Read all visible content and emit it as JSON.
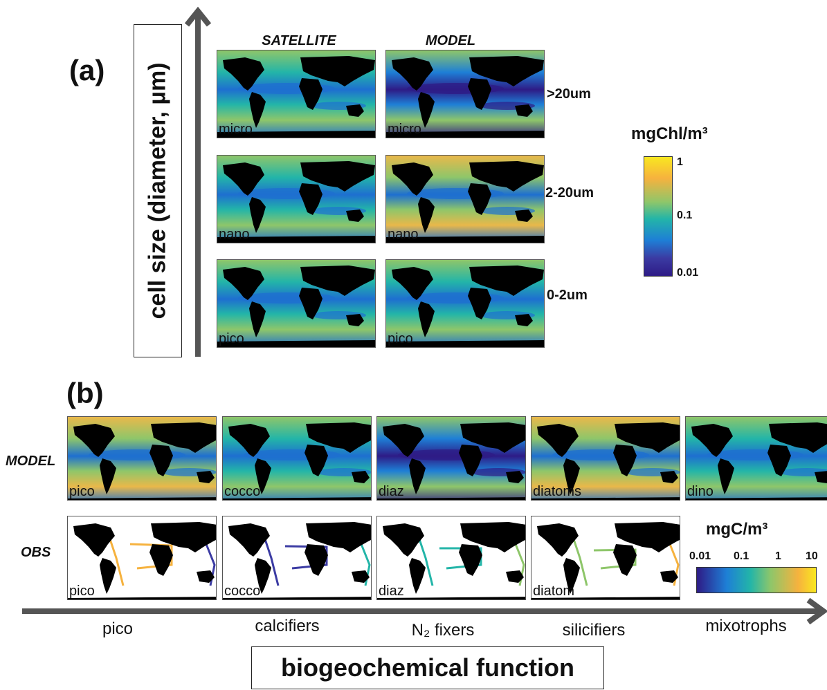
{
  "panel_a": {
    "label": "(a)",
    "axis_label": "cell size (diameter, µm)",
    "col_headers": [
      "SATELLITE",
      "MODEL"
    ],
    "rows": [
      {
        "size": ">20um",
        "satellite_label": "micro",
        "model_label": "micro",
        "sat_level": 0.35,
        "model_level": 0.15
      },
      {
        "size": "2-20um",
        "satellite_label": "nano",
        "model_label": "nano",
        "sat_level": 0.5,
        "model_level": 0.6
      },
      {
        "size": "0-2um",
        "satellite_label": "pico",
        "model_label": "pico",
        "sat_level": 0.5,
        "model_level": 0.4
      }
    ],
    "colorbar": {
      "title": "mgChl/m³",
      "ticks": [
        "1",
        "0.1",
        "0.01"
      ],
      "colors": [
        "#f9e720",
        "#f6b23e",
        "#8ec66a",
        "#23b5a8",
        "#1e7fd6",
        "#3b3ba3",
        "#2e1b86"
      ]
    }
  },
  "panel_b": {
    "label": "(b)",
    "row_headers": [
      "MODEL",
      "OBS"
    ],
    "model_maps": [
      {
        "label": "pico",
        "level": 0.6
      },
      {
        "label": "cocco",
        "level": 0.4
      },
      {
        "label": "diaz",
        "level": 0.15
      },
      {
        "label": "diatoms",
        "level": 0.7
      },
      {
        "label": "dino",
        "level": 0.45
      }
    ],
    "obs_maps": [
      {
        "label": "pico"
      },
      {
        "label": "cocco"
      },
      {
        "label": "diaz"
      },
      {
        "label": "diatom"
      }
    ],
    "colorbar": {
      "title": "mgC/m³",
      "ticks": [
        "0.01",
        "0.1",
        "1",
        "10"
      ],
      "colors": [
        "#2e1b86",
        "#1e7fd6",
        "#23b5a8",
        "#8ec66a",
        "#f6b23e",
        "#f9e720"
      ]
    },
    "functions": [
      "pico",
      "calcifiers",
      "N₂ fixers",
      "silicifiers",
      "mixotrophs"
    ],
    "axis_label": "biogeochemical function"
  }
}
